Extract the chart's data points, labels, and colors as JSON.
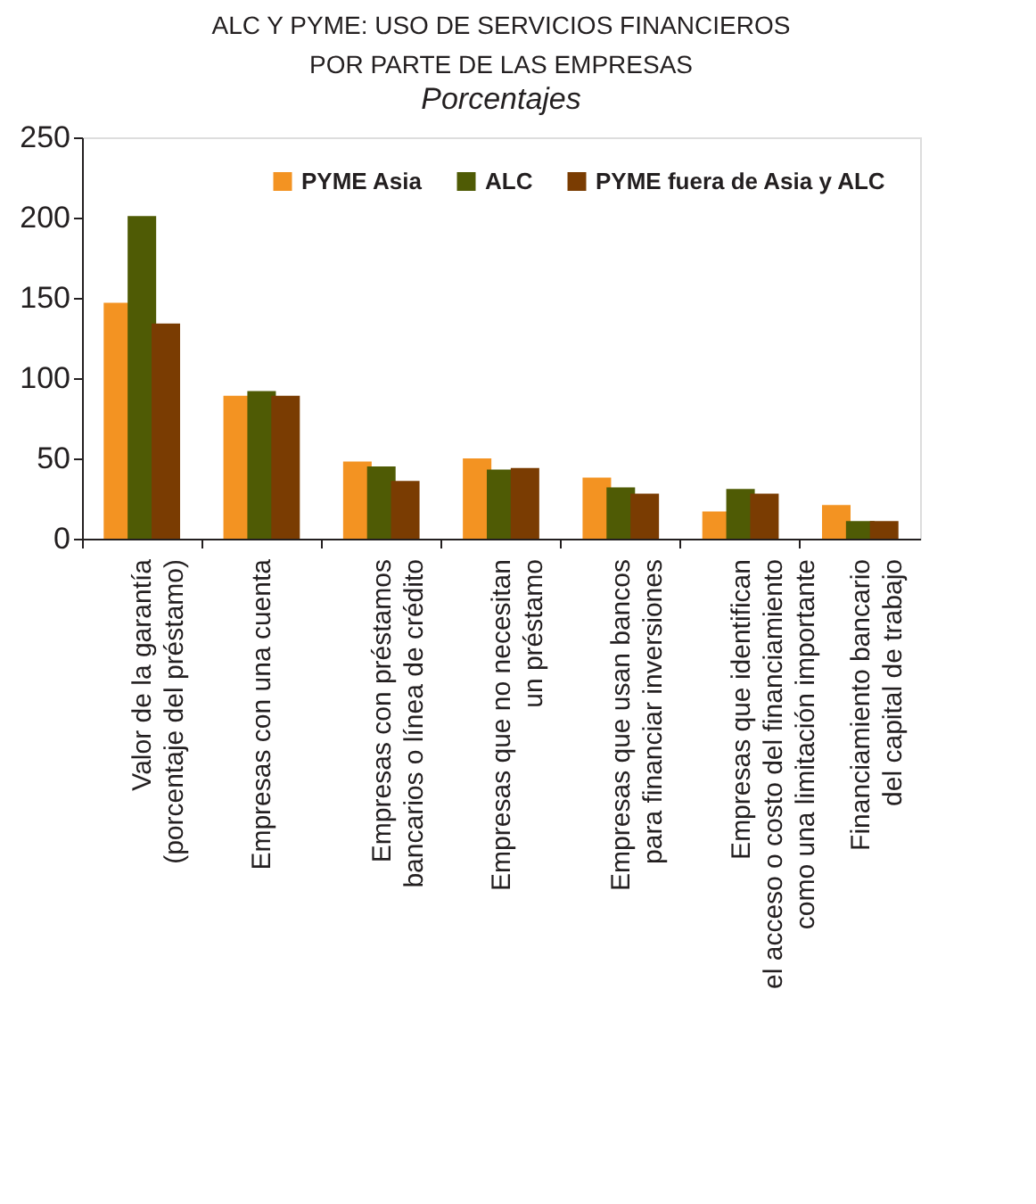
{
  "chart_data": {
    "type": "bar",
    "title": "ALC Y PYME: USO DE SERVICIOS FINANCIEROS\nPOR PARTE DE LAS EMPRESAS",
    "ylabel": "Porcentajes",
    "categories": [
      "Valor de la garantía\n(porcentaje del préstamo)",
      "Empresas con una cuenta",
      "Empresas con préstamos\nbancarios o línea de crédito",
      "Empresas que no necesitan\nun préstamo",
      "Empresas que usan bancos\npara financiar inversiones",
      "Empresas que identifican\nel acceso o costo del financiamiento\ncomo una limitación importante",
      "Financiamiento bancario\ndel capital de trabajo"
    ],
    "series": [
      {
        "name": "PYME Asia",
        "color": "#f39322",
        "values": [
          147,
          89,
          48,
          50,
          38,
          17,
          21
        ]
      },
      {
        "name": "ALC",
        "color": "#4f5b05",
        "values": [
          201,
          92,
          45,
          43,
          32,
          31,
          11
        ]
      },
      {
        "name": "PYME fuera de Asia y ALC",
        "color": "#7a3c02",
        "values": [
          134,
          89,
          36,
          44,
          28,
          28,
          11
        ]
      }
    ],
    "ylim": [
      0,
      250
    ],
    "yticks": [
      0,
      50,
      100,
      150,
      200,
      250
    ],
    "grid": false,
    "legend": "top right"
  }
}
